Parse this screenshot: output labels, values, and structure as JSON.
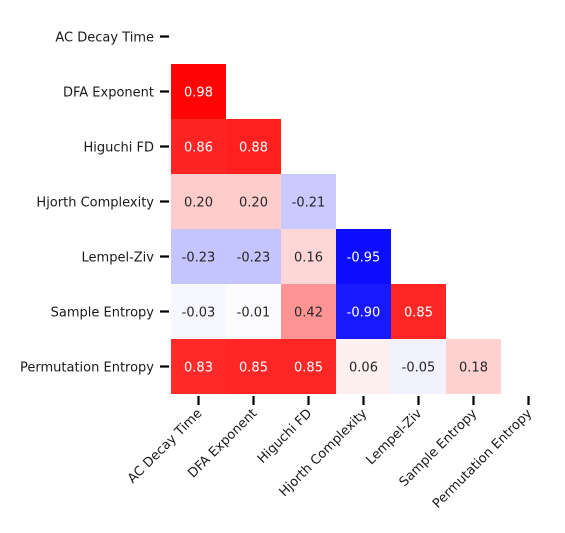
{
  "chart_data": {
    "type": "heatmap",
    "title": "",
    "xlabel": "",
    "ylabel": "",
    "labels": [
      "AC Decay Time",
      "DFA Exponent",
      "Higuchi FD",
      "Hjorth Complexity",
      "Lempel-Ziv",
      "Sample Entropy",
      "Permutation Entropy"
    ],
    "mask": "upper-triangle-including-diagonal",
    "colormap": "bwr",
    "vmin": -1,
    "vmax": 1,
    "cells": [
      {
        "row": 1,
        "col": 0,
        "value": 0.98,
        "label": "0.98"
      },
      {
        "row": 2,
        "col": 0,
        "value": 0.86,
        "label": "0.86"
      },
      {
        "row": 2,
        "col": 1,
        "value": 0.88,
        "label": "0.88"
      },
      {
        "row": 3,
        "col": 0,
        "value": 0.2,
        "label": "0.20"
      },
      {
        "row": 3,
        "col": 1,
        "value": 0.2,
        "label": "0.20"
      },
      {
        "row": 3,
        "col": 2,
        "value": -0.21,
        "label": "-0.21"
      },
      {
        "row": 4,
        "col": 0,
        "value": -0.23,
        "label": "-0.23"
      },
      {
        "row": 4,
        "col": 1,
        "value": -0.23,
        "label": "-0.23"
      },
      {
        "row": 4,
        "col": 2,
        "value": 0.16,
        "label": "0.16"
      },
      {
        "row": 4,
        "col": 3,
        "value": -0.95,
        "label": "-0.95"
      },
      {
        "row": 5,
        "col": 0,
        "value": -0.03,
        "label": "-0.03"
      },
      {
        "row": 5,
        "col": 1,
        "value": -0.01,
        "label": "-0.01"
      },
      {
        "row": 5,
        "col": 2,
        "value": 0.42,
        "label": "0.42"
      },
      {
        "row": 5,
        "col": 3,
        "value": -0.9,
        "label": "-0.90"
      },
      {
        "row": 5,
        "col": 4,
        "value": 0.85,
        "label": "0.85"
      },
      {
        "row": 6,
        "col": 0,
        "value": 0.83,
        "label": "0.83"
      },
      {
        "row": 6,
        "col": 1,
        "value": 0.85,
        "label": "0.85"
      },
      {
        "row": 6,
        "col": 2,
        "value": 0.85,
        "label": "0.85"
      },
      {
        "row": 6,
        "col": 3,
        "value": 0.06,
        "label": "0.06"
      },
      {
        "row": 6,
        "col": 4,
        "value": -0.05,
        "label": "-0.05"
      },
      {
        "row": 6,
        "col": 5,
        "value": 0.18,
        "label": "0.18"
      }
    ]
  }
}
